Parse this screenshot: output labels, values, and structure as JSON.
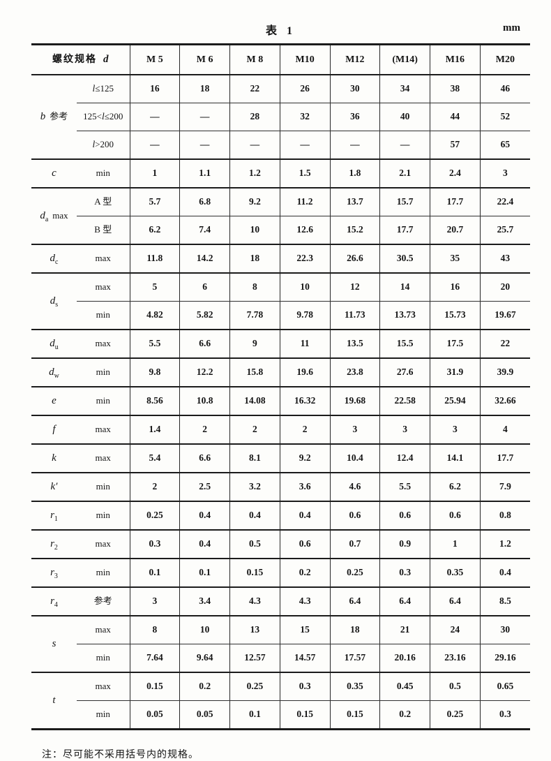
{
  "page": {
    "title": "表 1",
    "unit": "mm",
    "note": "注：尽可能不采用括号内的规格。"
  },
  "header": {
    "spec": "螺纹规格",
    "spec_sym": "d",
    "columns": [
      "M 5",
      "M 6",
      "M 8",
      "M10",
      "M12",
      "(M14)",
      "M16",
      "M20"
    ]
  },
  "groups": [
    {
      "sym": "b",
      "sub": "",
      "suffix": "参考",
      "rows": [
        {
          "cond": "l≤125",
          "values": [
            "16",
            "18",
            "22",
            "26",
            "30",
            "34",
            "38",
            "46"
          ]
        },
        {
          "cond": "125<l≤200",
          "values": [
            "—",
            "—",
            "28",
            "32",
            "36",
            "40",
            "44",
            "52"
          ]
        },
        {
          "cond": "l>200",
          "values": [
            "—",
            "—",
            "—",
            "—",
            "—",
            "—",
            "57",
            "65"
          ]
        }
      ]
    },
    {
      "sym": "c",
      "sub": "",
      "suffix": "",
      "rows": [
        {
          "cond": "min",
          "values": [
            "1",
            "1.1",
            "1.2",
            "1.5",
            "1.8",
            "2.1",
            "2.4",
            "3"
          ]
        }
      ]
    },
    {
      "sym": "d",
      "sub": "a",
      "suffix": "max",
      "rows": [
        {
          "cond": "A 型",
          "values": [
            "5.7",
            "6.8",
            "9.2",
            "11.2",
            "13.7",
            "15.7",
            "17.7",
            "22.4"
          ]
        },
        {
          "cond": "B 型",
          "values": [
            "6.2",
            "7.4",
            "10",
            "12.6",
            "15.2",
            "17.7",
            "20.7",
            "25.7"
          ]
        }
      ]
    },
    {
      "sym": "d",
      "sub": "c",
      "suffix": "",
      "rows": [
        {
          "cond": "max",
          "values": [
            "11.8",
            "14.2",
            "18",
            "22.3",
            "26.6",
            "30.5",
            "35",
            "43"
          ]
        }
      ]
    },
    {
      "sym": "d",
      "sub": "s",
      "suffix": "",
      "rows": [
        {
          "cond": "max",
          "values": [
            "5",
            "6",
            "8",
            "10",
            "12",
            "14",
            "16",
            "20"
          ]
        },
        {
          "cond": "min",
          "values": [
            "4.82",
            "5.82",
            "7.78",
            "9.78",
            "11.73",
            "13.73",
            "15.73",
            "19.67"
          ]
        }
      ]
    },
    {
      "sym": "d",
      "sub": "u",
      "suffix": "",
      "rows": [
        {
          "cond": "max",
          "values": [
            "5.5",
            "6.6",
            "9",
            "11",
            "13.5",
            "15.5",
            "17.5",
            "22"
          ]
        }
      ]
    },
    {
      "sym": "d",
      "sub": "w",
      "suffix": "",
      "rows": [
        {
          "cond": "min",
          "values": [
            "9.8",
            "12.2",
            "15.8",
            "19.6",
            "23.8",
            "27.6",
            "31.9",
            "39.9"
          ]
        }
      ]
    },
    {
      "sym": "e",
      "sub": "",
      "suffix": "",
      "rows": [
        {
          "cond": "min",
          "values": [
            "8.56",
            "10.8",
            "14.08",
            "16.32",
            "19.68",
            "22.58",
            "25.94",
            "32.66"
          ]
        }
      ]
    },
    {
      "sym": "f",
      "sub": "",
      "suffix": "",
      "rows": [
        {
          "cond": "max",
          "values": [
            "1.4",
            "2",
            "2",
            "2",
            "3",
            "3",
            "3",
            "4"
          ]
        }
      ]
    },
    {
      "sym": "k",
      "sub": "",
      "suffix": "",
      "rows": [
        {
          "cond": "max",
          "values": [
            "5.4",
            "6.6",
            "8.1",
            "9.2",
            "10.4",
            "12.4",
            "14.1",
            "17.7"
          ]
        }
      ]
    },
    {
      "sym": "k′",
      "sub": "",
      "suffix": "",
      "rows": [
        {
          "cond": "min",
          "values": [
            "2",
            "2.5",
            "3.2",
            "3.6",
            "4.6",
            "5.5",
            "6.2",
            "7.9"
          ]
        }
      ]
    },
    {
      "sym": "r",
      "sub": "1",
      "suffix": "",
      "rows": [
        {
          "cond": "min",
          "values": [
            "0.25",
            "0.4",
            "0.4",
            "0.4",
            "0.6",
            "0.6",
            "0.6",
            "0.8"
          ]
        }
      ]
    },
    {
      "sym": "r",
      "sub": "2",
      "suffix": "",
      "rows": [
        {
          "cond": "max",
          "values": [
            "0.3",
            "0.4",
            "0.5",
            "0.6",
            "0.7",
            "0.9",
            "1",
            "1.2"
          ]
        }
      ]
    },
    {
      "sym": "r",
      "sub": "3",
      "suffix": "",
      "rows": [
        {
          "cond": "min",
          "values": [
            "0.1",
            "0.1",
            "0.15",
            "0.2",
            "0.25",
            "0.3",
            "0.35",
            "0.4"
          ]
        }
      ]
    },
    {
      "sym": "r",
      "sub": "4",
      "suffix": "",
      "rows": [
        {
          "cond": "参考",
          "values": [
            "3",
            "3.4",
            "4.3",
            "4.3",
            "6.4",
            "6.4",
            "6.4",
            "8.5"
          ]
        }
      ]
    },
    {
      "sym": "s",
      "sub": "",
      "suffix": "",
      "rows": [
        {
          "cond": "max",
          "values": [
            "8",
            "10",
            "13",
            "15",
            "18",
            "21",
            "24",
            "30"
          ]
        },
        {
          "cond": "min",
          "values": [
            "7.64",
            "9.64",
            "12.57",
            "14.57",
            "17.57",
            "20.16",
            "23.16",
            "29.16"
          ]
        }
      ]
    },
    {
      "sym": "t",
      "sub": "",
      "suffix": "",
      "rows": [
        {
          "cond": "max",
          "values": [
            "0.15",
            "0.2",
            "0.25",
            "0.3",
            "0.35",
            "0.45",
            "0.5",
            "0.65"
          ]
        },
        {
          "cond": "min",
          "values": [
            "0.05",
            "0.05",
            "0.1",
            "0.15",
            "0.15",
            "0.2",
            "0.25",
            "0.3"
          ]
        }
      ]
    }
  ]
}
